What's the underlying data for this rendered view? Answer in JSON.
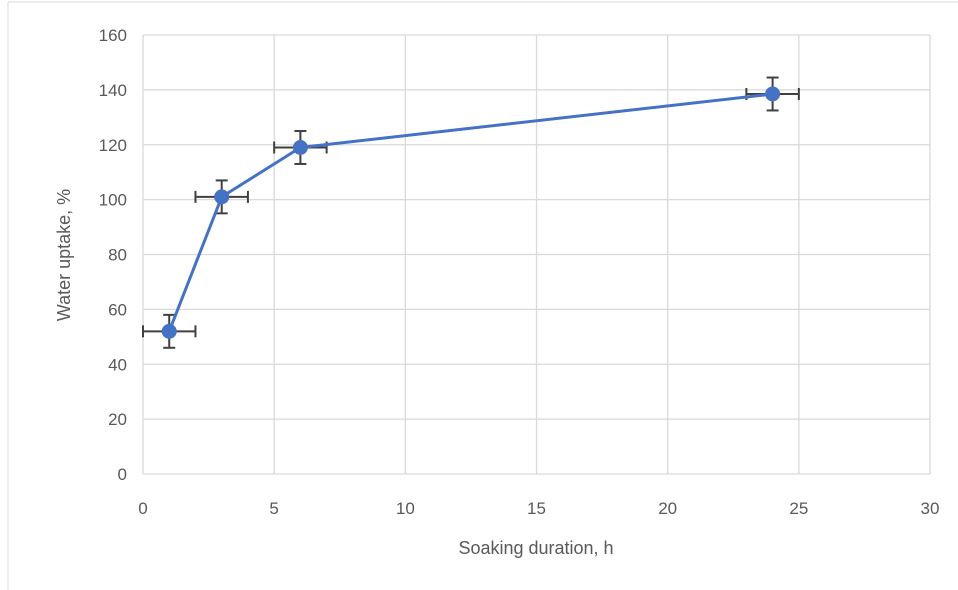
{
  "chart_data": {
    "type": "line",
    "title": "",
    "xlabel": "Soaking duration, h",
    "ylabel": "Water uptake, %",
    "xlim": [
      0,
      30
    ],
    "ylim": [
      0,
      160
    ],
    "x_ticks": [
      0,
      5,
      10,
      15,
      20,
      25,
      30
    ],
    "y_ticks": [
      0,
      20,
      40,
      60,
      80,
      100,
      120,
      140,
      160
    ],
    "grid": true,
    "legend": "none",
    "series": [
      {
        "x": [
          1,
          3,
          6,
          24
        ],
        "y": [
          52,
          101,
          119,
          138.5
        ],
        "x_error": [
          1,
          1,
          1,
          1
        ],
        "y_error": [
          6,
          6,
          6,
          6
        ],
        "color": "#4472C4",
        "marker": "circle"
      }
    ],
    "error_bar_color": "#404040",
    "grid_color": "#D9D9D9"
  }
}
